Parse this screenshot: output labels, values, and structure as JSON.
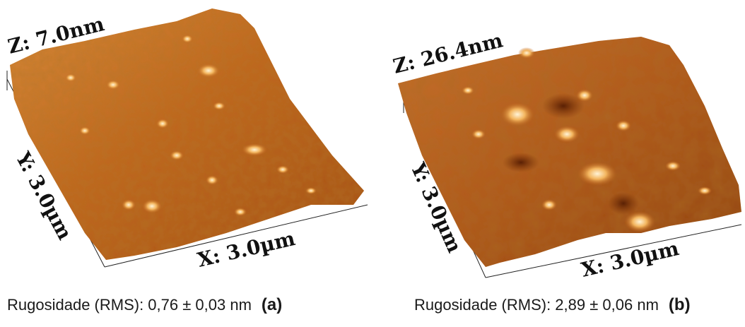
{
  "panels": [
    {
      "z_label": "Z: 7.0nm",
      "y_label": "Y: 3.0µm",
      "x_label": "X: 3.0µm",
      "caption": "Rugosidade (RMS): 0,76 ± 0,03 nm",
      "tag": "(a)"
    },
    {
      "z_label": "Z: 26.4nm",
      "y_label": "Y: 3.0µm",
      "x_label": "X: 3.0µm",
      "caption": "Rugosidade (RMS): 2,89 ± 0,06 nm",
      "tag": "(b)"
    }
  ],
  "colors": {
    "surface_dark": "#7a3208",
    "surface_mid": "#c0651c",
    "surface_light": "#f3b55e",
    "peak_highlight": "#fff3d6"
  }
}
